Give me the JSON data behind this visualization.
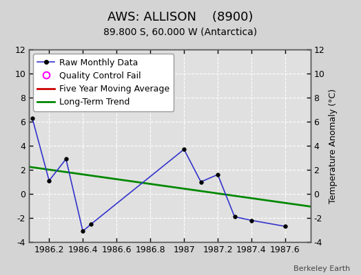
{
  "title": "AWS: ALLISON    (8900)",
  "subtitle": "89.800 S, 60.000 W (Antarctica)",
  "ylabel": "Temperature Anomaly (°C)",
  "watermark": "Berkeley Earth",
  "xlim": [
    1986.08,
    1987.75
  ],
  "ylim": [
    -4,
    12
  ],
  "yticks": [
    -4,
    -2,
    0,
    2,
    4,
    6,
    8,
    10,
    12
  ],
  "xticks": [
    1986.2,
    1986.4,
    1986.6,
    1986.8,
    1987.0,
    1987.2,
    1987.4,
    1987.6
  ],
  "xticklabels": [
    "1986.2",
    "1986.4",
    "1986.6",
    "1986.8",
    "1987",
    "1987.2",
    "1987.4",
    "1987.6"
  ],
  "raw_x": [
    1986.1,
    1986.2,
    1986.3,
    1986.4,
    1986.45,
    1987.0,
    1987.1,
    1987.2,
    1987.3,
    1987.4,
    1987.6
  ],
  "raw_y": [
    6.3,
    1.1,
    2.9,
    -3.1,
    -2.5,
    3.7,
    1.0,
    1.6,
    -1.9,
    -2.2,
    -2.7
  ],
  "raw_color": "#3333cc",
  "raw_marker": "o",
  "raw_markersize": 4,
  "raw_markerfacecolor": "#000000",
  "raw_markeredgecolor": "#000000",
  "raw_linewidth": 1.2,
  "trend_x": [
    1986.08,
    1987.75
  ],
  "trend_y": [
    2.25,
    -1.05
  ],
  "trend_color": "#008800",
  "trend_linewidth": 2.0,
  "ma_color": "#cc0000",
  "ma_linewidth": 2.0,
  "bg_color": "#d4d4d4",
  "plot_bg_color": "#e0e0e0",
  "grid_color": "#ffffff",
  "grid_linestyle": "--",
  "grid_linewidth": 0.8,
  "title_fontsize": 13,
  "subtitle_fontsize": 10,
  "tick_fontsize": 9,
  "legend_fontsize": 9,
  "legend_raw_label": "Raw Monthly Data",
  "legend_qc_label": "Quality Control Fail",
  "legend_ma_label": "Five Year Moving Average",
  "legend_trend_label": "Long-Term Trend"
}
